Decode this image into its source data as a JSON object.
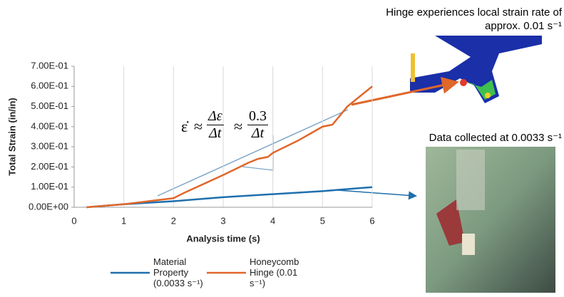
{
  "chart_data": {
    "type": "line",
    "y_label": "Total Strain (in/in)",
    "x_label": "Analysis time (s)",
    "xlim": [
      0,
      6
    ],
    "xticks": [
      0,
      1,
      2,
      3,
      4,
      5,
      6
    ],
    "ylim": [
      0,
      0.7
    ],
    "yticks": [
      {
        "value": 0,
        "label": "0.00E+00"
      },
      {
        "value": 0.1,
        "label": "1.00E-01"
      },
      {
        "value": 0.2,
        "label": "2.00E-01"
      },
      {
        "value": 0.3,
        "label": "3.00E-01"
      },
      {
        "value": 0.4,
        "label": "4.00E-01"
      },
      {
        "value": 0.5,
        "label": "5.00E-01"
      },
      {
        "value": 0.6,
        "label": "6.00E-01"
      },
      {
        "value": 0.7,
        "label": "7.00E-01"
      }
    ],
    "grid": "x",
    "series": [
      {
        "name": "Material Property (0.0033 s⁻¹)",
        "color": "#1f6fad",
        "x": [
          0.25,
          1,
          2,
          3,
          4,
          5,
          5.5,
          6
        ],
        "values": [
          0.0,
          0.015,
          0.03,
          0.05,
          0.065,
          0.08,
          0.09,
          0.1
        ]
      },
      {
        "name": "Honeycomb Hinge (0.01 s⁻¹)",
        "color": "#e0672a",
        "x": [
          0.25,
          1,
          2,
          2.2,
          3,
          3.5,
          3.7,
          3.9,
          4,
          4.5,
          5,
          5.2,
          5.5,
          6
        ],
        "values": [
          0.0,
          0.015,
          0.045,
          0.07,
          0.16,
          0.22,
          0.24,
          0.25,
          0.27,
          0.33,
          0.4,
          0.41,
          0.5,
          0.6
        ]
      }
    ],
    "annotations": {
      "lhs": "ε̇",
      "approx": "≈",
      "num1": "Δε",
      "den1": "Δt",
      "num2": "0.3",
      "den2": "Δt"
    },
    "notes": [
      "Hinge experiences local strain rate of approx. 0.01 s⁻¹",
      "Data collected at 0.0033 s⁻¹"
    ]
  }
}
